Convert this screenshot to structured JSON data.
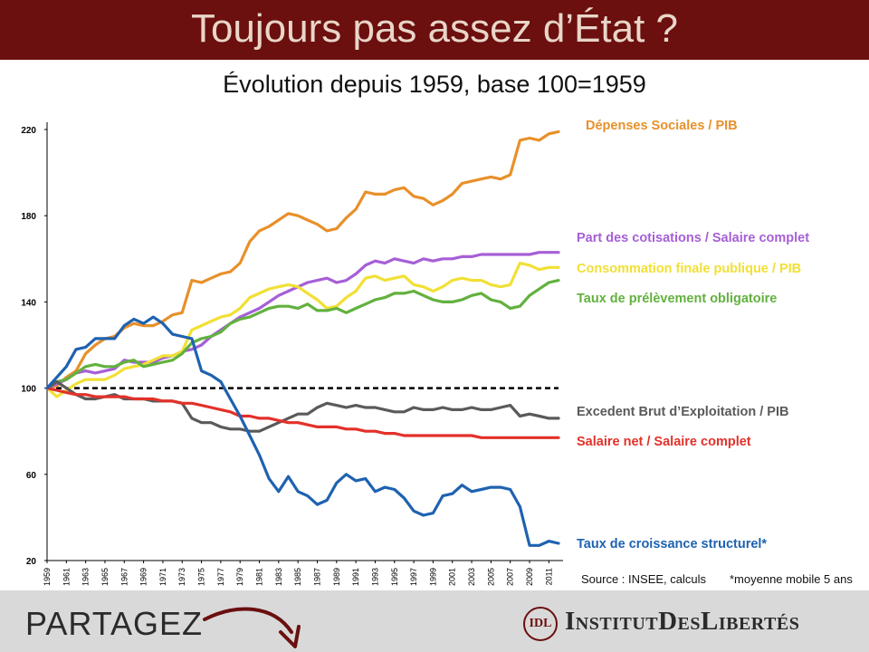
{
  "header": {
    "title": "Toujours pas assez d’État ?"
  },
  "subtitle": "Évolution depuis 1959, base 100=1959",
  "colors": {
    "banner": "#6b0f0f",
    "footer": "#d9d9d9"
  },
  "chart_data": {
    "type": "line",
    "ylim": [
      20,
      220
    ],
    "yticks": [
      20,
      60,
      100,
      140,
      180,
      220
    ],
    "xticks": [
      "1959",
      "1961",
      "1963",
      "1965",
      "1967",
      "1969",
      "1971",
      "1973",
      "1975",
      "1977",
      "1979",
      "1981",
      "1983",
      "1985",
      "1987",
      "1989",
      "1991",
      "1993",
      "1995",
      "1997",
      "1999",
      "2001",
      "2003",
      "2005",
      "2007",
      "2009",
      "2011"
    ],
    "x": [
      1959,
      1960,
      1961,
      1962,
      1963,
      1964,
      1965,
      1966,
      1967,
      1968,
      1969,
      1970,
      1971,
      1972,
      1973,
      1974,
      1975,
      1976,
      1977,
      1978,
      1979,
      1980,
      1981,
      1982,
      1983,
      1984,
      1985,
      1986,
      1987,
      1988,
      1989,
      1990,
      1991,
      1992,
      1993,
      1994,
      1995,
      1996,
      1997,
      1998,
      1999,
      2000,
      2001,
      2002,
      2003,
      2004,
      2005,
      2006,
      2007,
      2008,
      2009,
      2010,
      2011,
      2012
    ],
    "reference_line": 100,
    "series": [
      {
        "name": "Dépenses Sociales / PIB",
        "color": "#e8902a",
        "values": [
          100,
          101,
          105,
          108,
          116,
          120,
          123,
          124,
          128,
          130,
          129,
          129,
          131,
          134,
          135,
          150,
          149,
          151,
          153,
          154,
          158,
          168,
          173,
          175,
          178,
          181,
          180,
          178,
          176,
          173,
          174,
          179,
          183,
          191,
          190,
          190,
          192,
          193,
          189,
          188,
          185,
          187,
          190,
          195,
          196,
          197,
          198,
          197,
          199,
          215,
          216,
          215,
          218,
          219
        ]
      },
      {
        "name": "Part des cotisations / Salaire complet",
        "color": "#a65fd6",
        "values": [
          100,
          102,
          104,
          107,
          108,
          107,
          108,
          109,
          113,
          112,
          112,
          112,
          114,
          115,
          117,
          118,
          120,
          124,
          127,
          130,
          133,
          135,
          137,
          140,
          143,
          145,
          147,
          149,
          150,
          151,
          149,
          150,
          153,
          157,
          159,
          158,
          160,
          159,
          158,
          160,
          159,
          160,
          160,
          161,
          161,
          162,
          162,
          162,
          162,
          162,
          162,
          163,
          163,
          163
        ]
      },
      {
        "name": "Consommation finale publique / PIB",
        "color": "#f1e035",
        "values": [
          100,
          96,
          99,
          102,
          104,
          104,
          104,
          106,
          109,
          110,
          111,
          113,
          115,
          115,
          117,
          127,
          129,
          131,
          133,
          134,
          137,
          142,
          144,
          146,
          147,
          148,
          147,
          144,
          141,
          137,
          138,
          142,
          145,
          151,
          152,
          150,
          151,
          152,
          148,
          147,
          145,
          147,
          150,
          151,
          150,
          150,
          148,
          147,
          148,
          158,
          157,
          155,
          156,
          156
        ]
      },
      {
        "name": "Taux de prélèvement obligatoire",
        "color": "#62b13e",
        "values": [
          100,
          103,
          104,
          107,
          110,
          111,
          110,
          110,
          112,
          113,
          110,
          111,
          112,
          113,
          116,
          121,
          123,
          124,
          126,
          130,
          132,
          133,
          135,
          137,
          138,
          138,
          137,
          139,
          136,
          136,
          137,
          135,
          137,
          139,
          141,
          142,
          144,
          144,
          145,
          143,
          141,
          140,
          140,
          141,
          143,
          144,
          141,
          140,
          137,
          138,
          143,
          146,
          149,
          150
        ]
      },
      {
        "name": "Excedent Brut d’Exploitation / PIB",
        "color": "#5a5a5a",
        "values": [
          100,
          103,
          100,
          97,
          95,
          95,
          96,
          97,
          95,
          95,
          95,
          94,
          94,
          94,
          93,
          86,
          84,
          84,
          82,
          81,
          81,
          80,
          80,
          82,
          84,
          86,
          88,
          88,
          91,
          93,
          92,
          91,
          92,
          91,
          91,
          90,
          89,
          89,
          91,
          90,
          90,
          91,
          90,
          90,
          91,
          90,
          90,
          91,
          92,
          87,
          88,
          87,
          86,
          86
        ]
      },
      {
        "name": "Salaire net / Salaire complet",
        "color": "#e3312a",
        "values": [
          100,
          99,
          98,
          97,
          97,
          96,
          96,
          96,
          96,
          95,
          95,
          95,
          94,
          94,
          93,
          93,
          92,
          91,
          90,
          89,
          87,
          87,
          86,
          86,
          85,
          84,
          84,
          83,
          82,
          82,
          82,
          81,
          81,
          80,
          80,
          79,
          79,
          78,
          78,
          78,
          78,
          78,
          78,
          78,
          78,
          77,
          77,
          77,
          77,
          77,
          77,
          77,
          77,
          77
        ]
      },
      {
        "name": "Taux de croissance structurel*",
        "color": "#1f62b0",
        "values": [
          100,
          105,
          110,
          118,
          119,
          123,
          123,
          123,
          129,
          132,
          130,
          133,
          130,
          125,
          124,
          123,
          108,
          106,
          103,
          95,
          87,
          78,
          69,
          58,
          52,
          59,
          52,
          50,
          46,
          48,
          56,
          60,
          57,
          58,
          52,
          54,
          53,
          49,
          43,
          41,
          42,
          50,
          51,
          55,
          52,
          53,
          54,
          54,
          53,
          45,
          27,
          27,
          29,
          28
        ]
      }
    ]
  },
  "source": "Source : INSEE, calculs",
  "footnote": "*moyenne mobile 5 ans",
  "footer": {
    "share": "PARTAGEZ",
    "logo_mark": "IDL",
    "logo_text": "InstitutDesLibertés"
  }
}
